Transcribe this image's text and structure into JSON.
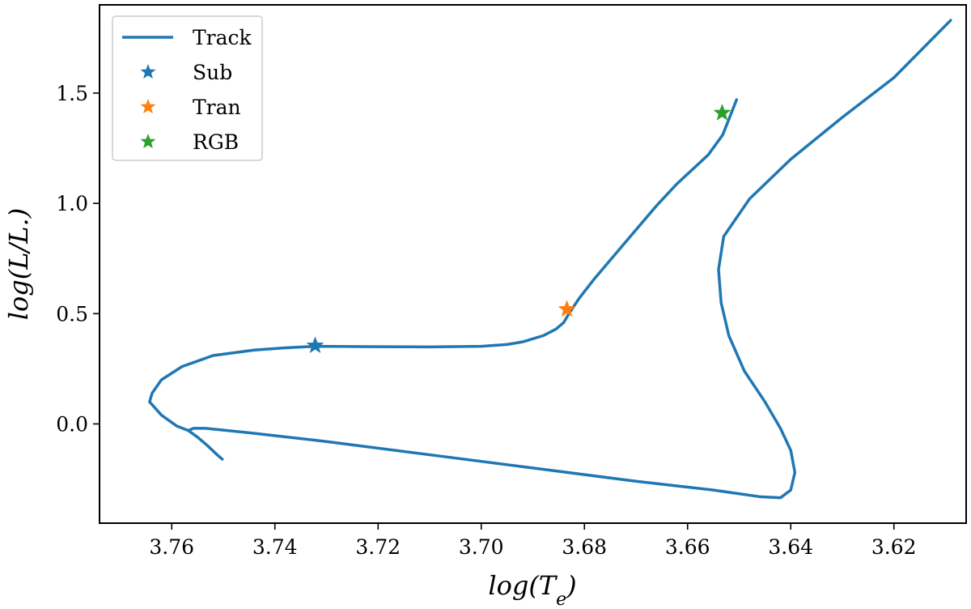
{
  "chart_data": {
    "type": "line",
    "x_reversed": true,
    "xlim": [
      3.774,
      3.606
    ],
    "ylim": [
      -0.45,
      1.9
    ],
    "xticks": [
      3.76,
      3.74,
      3.72,
      3.7,
      3.68,
      3.66,
      3.64,
      3.62
    ],
    "xtick_labels": [
      "3.76",
      "3.74",
      "3.72",
      "3.70",
      "3.68",
      "3.66",
      "3.64",
      "3.62"
    ],
    "yticks": [
      0.0,
      0.5,
      1.0,
      1.5
    ],
    "ytick_labels": [
      "0.0",
      "0.5",
      "1.0",
      "1.5"
    ],
    "xlabel": "log(Te)",
    "ylabel": "log(L/L.)",
    "grid": false,
    "legend_position": "top-left",
    "series": [
      {
        "name": "Track",
        "kind": "line",
        "color": "#1f77b4",
        "x": [
          3.7502,
          3.7512,
          3.753,
          3.755,
          3.7562,
          3.7568,
          3.7558,
          3.7535,
          3.745,
          3.73,
          3.71,
          3.69,
          3.67,
          3.655,
          3.646,
          3.642,
          3.64,
          3.6392,
          3.64,
          3.642,
          3.645,
          3.649,
          3.652,
          3.6535,
          3.654,
          3.653,
          3.648,
          3.64,
          3.63,
          3.62,
          3.609
        ],
        "y": [
          -0.16,
          -0.14,
          -0.1,
          -0.06,
          -0.04,
          -0.03,
          -0.02,
          -0.02,
          -0.04,
          -0.08,
          -0.14,
          -0.2,
          -0.26,
          -0.3,
          -0.33,
          -0.335,
          -0.3,
          -0.22,
          -0.12,
          -0.02,
          0.1,
          0.24,
          0.4,
          0.55,
          0.7,
          0.85,
          1.02,
          1.2,
          1.39,
          1.57,
          1.83
        ]
      },
      {
        "name": "Track",
        "kind": "line",
        "color": "#1f77b4",
        "x": [
          3.7568,
          3.759,
          3.762,
          3.7643,
          3.7638,
          3.762,
          3.758,
          3.752,
          3.744,
          3.738,
          3.732,
          3.72,
          3.71,
          3.7,
          3.695,
          3.692,
          3.688,
          3.6855,
          3.684,
          3.683,
          3.681,
          3.678,
          3.674,
          3.67,
          3.666,
          3.662,
          3.656,
          3.6532,
          3.6505
        ],
        "y": [
          -0.03,
          -0.01,
          0.04,
          0.1,
          0.14,
          0.2,
          0.26,
          0.31,
          0.335,
          0.345,
          0.352,
          0.35,
          0.349,
          0.352,
          0.36,
          0.372,
          0.4,
          0.43,
          0.46,
          0.5,
          0.57,
          0.66,
          0.77,
          0.88,
          0.99,
          1.09,
          1.22,
          1.31,
          1.47
        ]
      }
    ],
    "markers": [
      {
        "name": "Sub",
        "x": 3.7322,
        "y": 0.355,
        "color": "#1f77b4"
      },
      {
        "name": "Tran",
        "x": 3.6834,
        "y": 0.52,
        "color": "#ff7f0e"
      },
      {
        "name": "RGB",
        "x": 3.6533,
        "y": 1.41,
        "color": "#2ca02c"
      }
    ],
    "legend": [
      {
        "label": "Track",
        "kind": "line",
        "color": "#1f77b4"
      },
      {
        "label": "Sub",
        "kind": "star",
        "color": "#1f77b4"
      },
      {
        "label": "Tran",
        "kind": "star",
        "color": "#ff7f0e"
      },
      {
        "label": "RGB",
        "kind": "star",
        "color": "#2ca02c"
      }
    ]
  }
}
